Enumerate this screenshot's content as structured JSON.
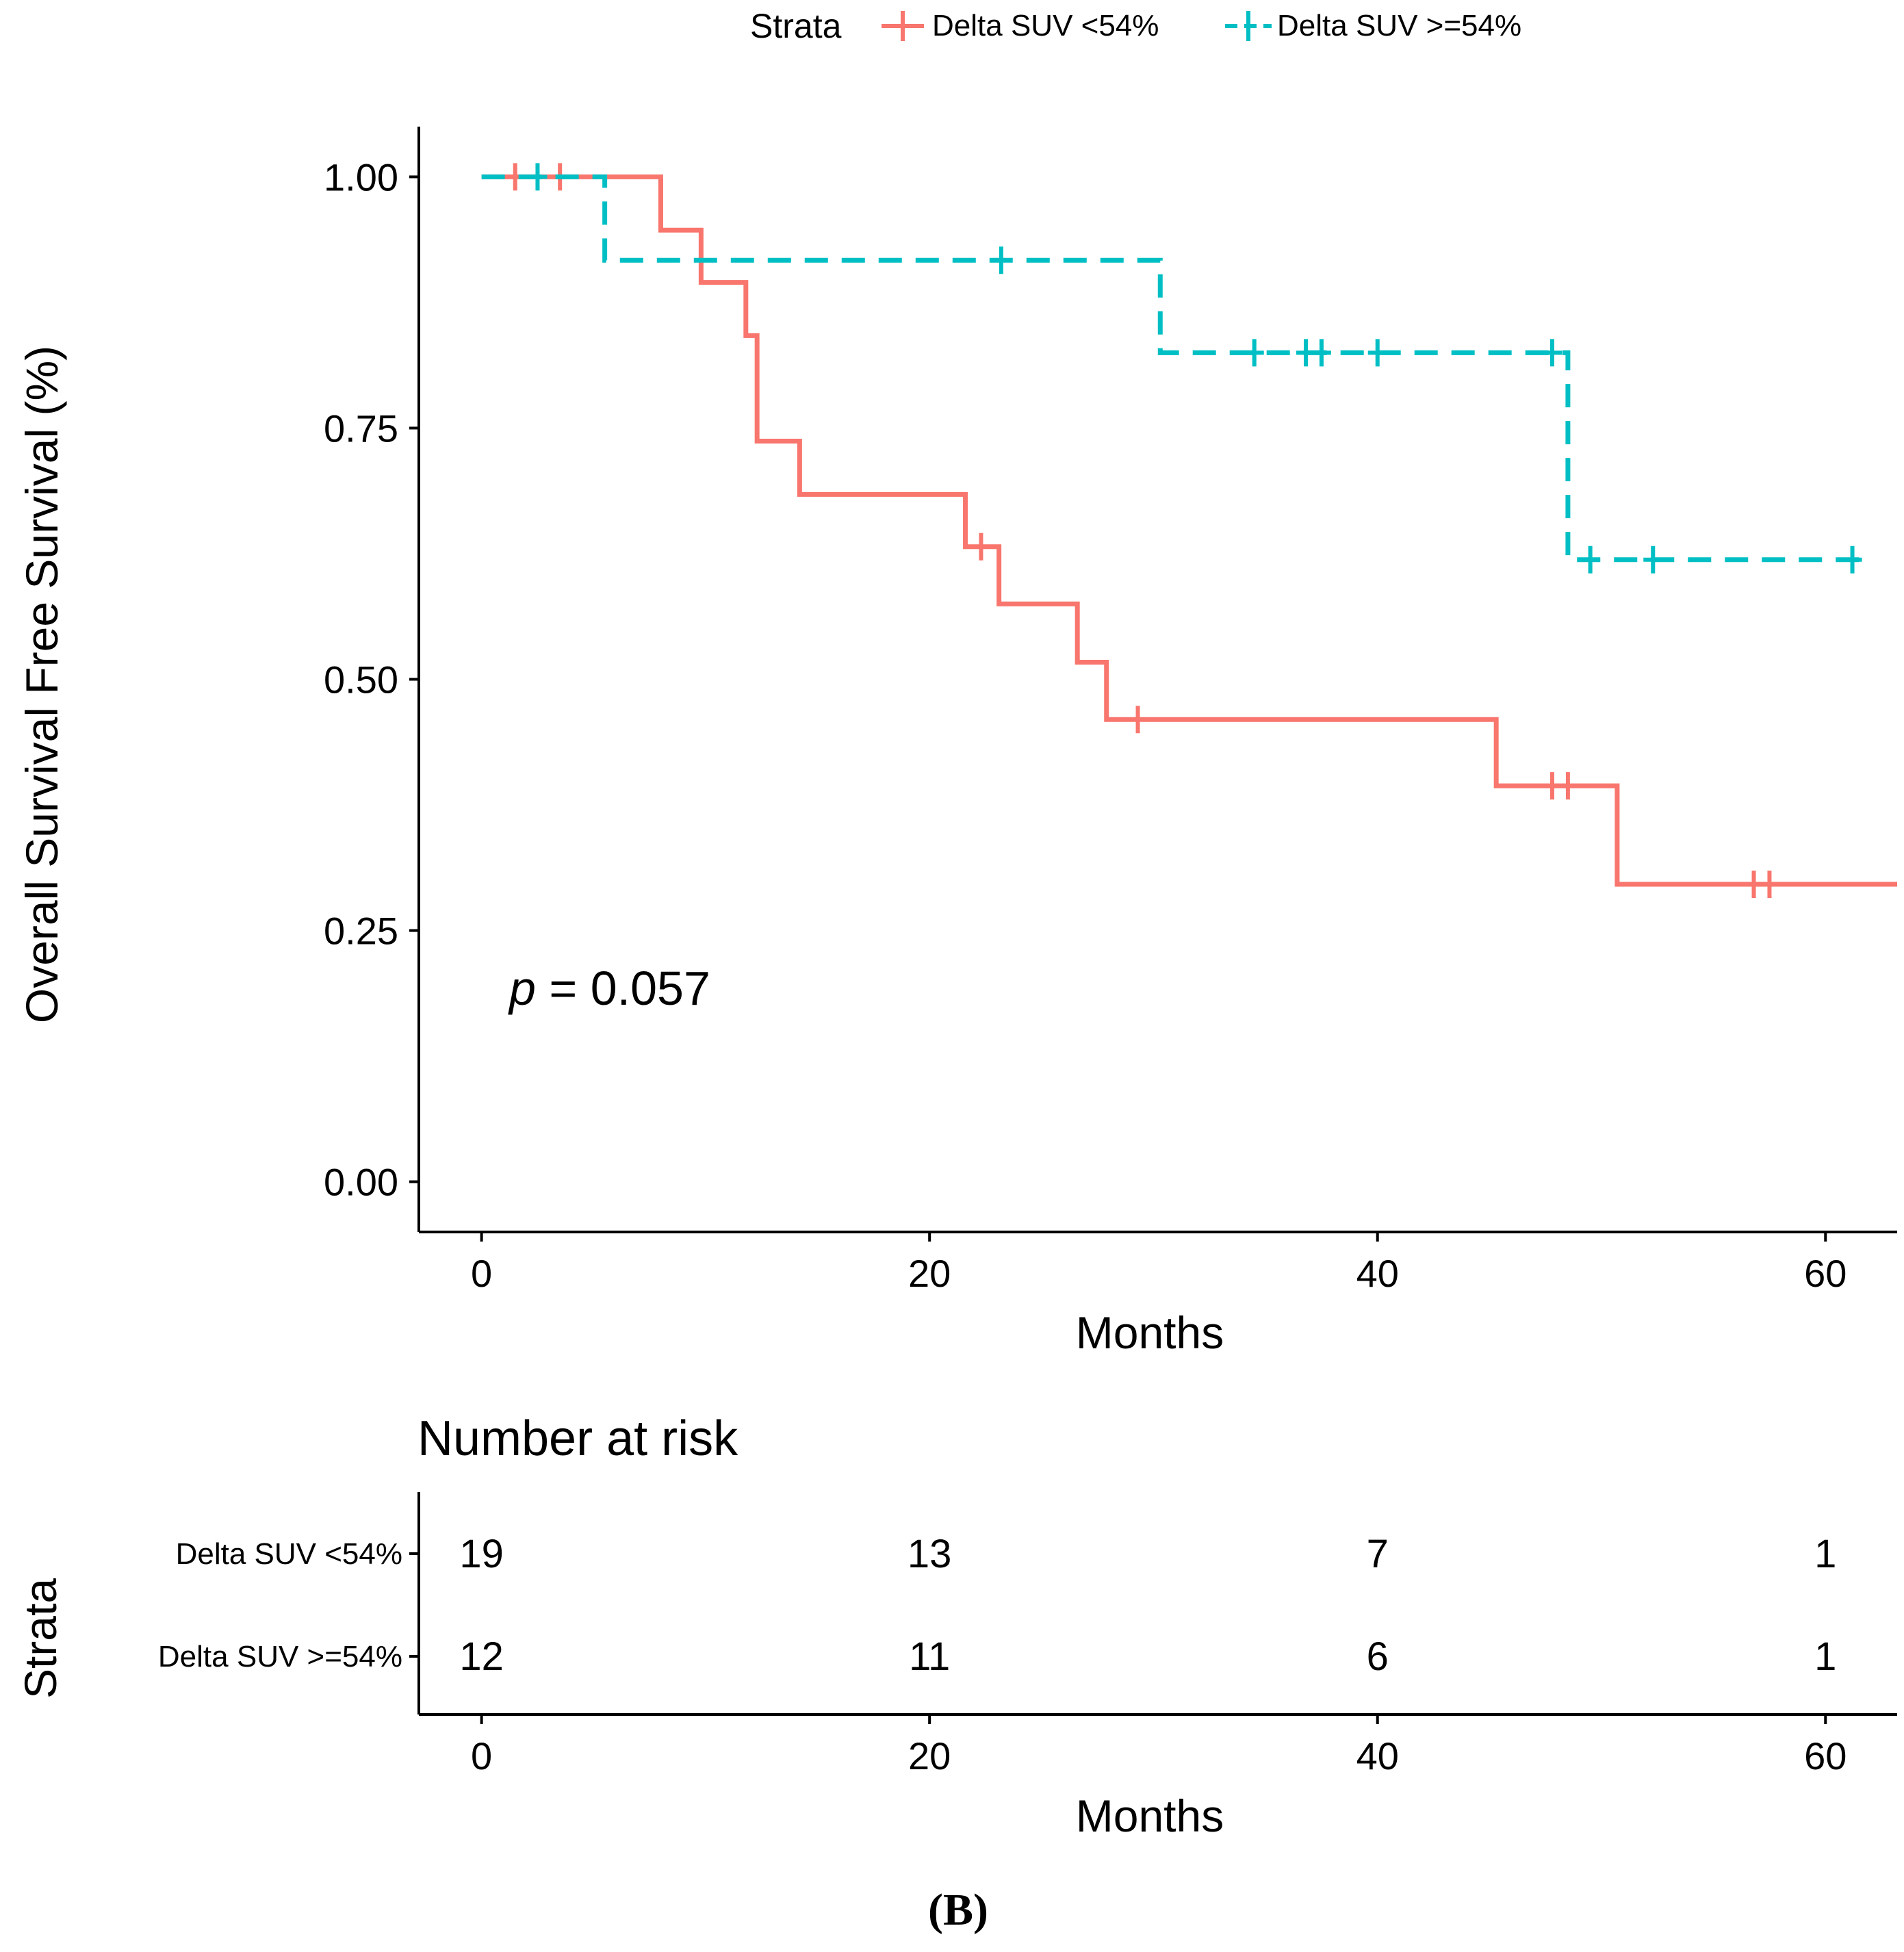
{
  "chart_data": {
    "type": "line",
    "subtype": "kaplan-meier-step",
    "title": "",
    "xlabel": "Months",
    "ylabel": "Overall Survival Free Survival (%)",
    "xlim": [
      -2.8,
      63.2
    ],
    "ylim": [
      -0.05,
      1.05
    ],
    "xticks": [
      0,
      20,
      40,
      60
    ],
    "xtick_labels": [
      "0",
      "20",
      "40",
      "60"
    ],
    "yticks": [
      0.0,
      0.25,
      0.5,
      0.75,
      1.0
    ],
    "ytick_labels": [
      "0.00",
      "0.25",
      "0.50",
      "0.75",
      "1.00"
    ],
    "grid": false,
    "legend": {
      "title": "Strata",
      "position": "top",
      "entries": [
        "Delta SUV <54%",
        "Delta SUV >=54%"
      ]
    },
    "annotation": {
      "prefix": "p",
      "text": " = 0.057"
    },
    "series": [
      {
        "name": "Delta SUV <54%",
        "color": "#F8766D",
        "dash": "solid",
        "steps": [
          [
            0,
            1.0
          ],
          [
            8,
            0.947
          ],
          [
            9.8,
            0.895
          ],
          [
            11.8,
            0.842
          ],
          [
            12.3,
            0.737
          ],
          [
            14.2,
            0.684
          ],
          [
            21.6,
            0.632
          ],
          [
            23.1,
            0.575
          ],
          [
            26.6,
            0.517
          ],
          [
            27.9,
            0.46
          ],
          [
            45.3,
            0.394
          ],
          [
            50.7,
            0.296
          ],
          [
            63.2,
            0.296
          ]
        ],
        "censor_times": [
          1.5,
          3.5,
          22.3,
          29.3,
          47.8,
          48.5,
          56.8,
          57.5
        ]
      },
      {
        "name": "Delta SUV >=54%",
        "color": "#00BFC4",
        "dash": "dashed",
        "steps": [
          [
            0,
            1.0
          ],
          [
            5.5,
            0.917
          ],
          [
            30.3,
            0.825
          ],
          [
            48.5,
            0.619
          ],
          [
            61.5,
            0.619
          ]
        ],
        "censor_times": [
          2.5,
          23.2,
          34.5,
          36.8,
          37.5,
          40.0,
          47.8,
          49.5,
          52.3,
          61.2
        ]
      }
    ],
    "risk_table": {
      "title": "Number at risk",
      "ylabel": "Strata",
      "xlabel": "Months",
      "xticks": [
        0,
        20,
        40,
        60
      ],
      "xtick_labels": [
        "0",
        "20",
        "40",
        "60"
      ],
      "rows": [
        {
          "label": "Delta SUV <54%",
          "values": [
            "19",
            "13",
            "7",
            "1"
          ]
        },
        {
          "label": "Delta SUV >=54%",
          "values": [
            "12",
            "11",
            "6",
            "1"
          ]
        }
      ]
    },
    "panel_label": "(B)"
  }
}
